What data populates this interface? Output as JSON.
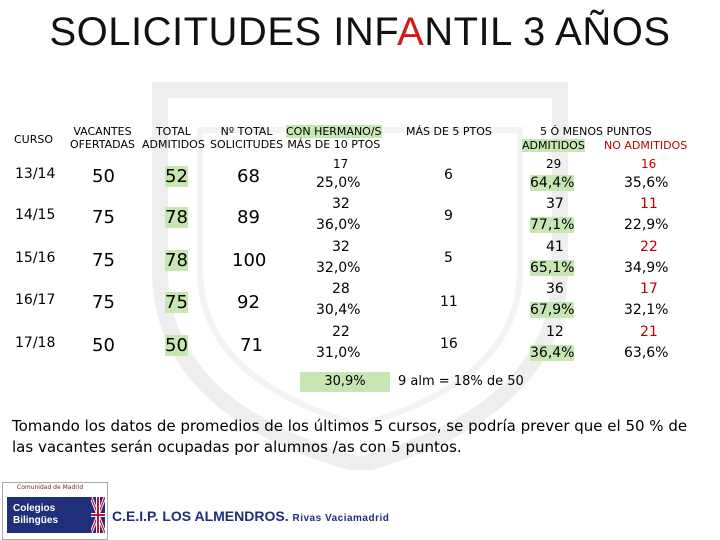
{
  "title": {
    "part1": "SOLICITUDES INF",
    "part_red": "A",
    "part2": "NTIL 3 AÑOS"
  },
  "headers": {
    "curso": "CURSO",
    "vacantes": [
      "VACANTES",
      "OFERTADAS"
    ],
    "admitidos": [
      "TOTAL",
      "ADMITIDOS"
    ],
    "solicitudes": [
      "Nº TOTAL",
      "SOLICITUDES"
    ],
    "hermano": [
      "CON HERMANO/S",
      "MÁS DE 10 PTOS"
    ],
    "mas5": "MÁS DE 5 PTOS",
    "menos5": "5 Ó MENOS PUNTOS",
    "admitidos2": "ADMITIDOS",
    "no_admitidos": "NO ADMITIDOS"
  },
  "rows": [
    {
      "curso": "13/14",
      "vacantes": "50",
      "admitidos": "52",
      "solicitudes": "68",
      "hermano_n": "17",
      "hermano_pct": "25,0%",
      "mas5": "6",
      "adm_n": "29",
      "adm_pct": "64,4%",
      "noadm_n": "16",
      "noadm_pct": "35,6%"
    },
    {
      "curso": "14/15",
      "vacantes": "75",
      "admitidos": "78",
      "solicitudes": "89",
      "hermano_n": "32",
      "hermano_pct": "36,0%",
      "mas5": "9",
      "adm_n": "37",
      "adm_pct": "77,1%",
      "noadm_n": "11",
      "noadm_pct": "22,9%"
    },
    {
      "curso": "15/16",
      "vacantes": "75",
      "admitidos": "78",
      "solicitudes": "100",
      "hermano_n": "32",
      "hermano_pct": "32,0%",
      "mas5": "5",
      "adm_n": "41",
      "adm_pct": "65,1%",
      "noadm_n": "22",
      "noadm_pct": "34,9%"
    },
    {
      "curso": "16/17",
      "vacantes": "75",
      "admitidos": "75",
      "solicitudes": "92",
      "hermano_n": "28",
      "hermano_pct": "30,4%",
      "mas5": "11",
      "adm_n": "36",
      "adm_pct": "67,9%",
      "noadm_n": "17",
      "noadm_pct": "32,1%"
    },
    {
      "curso": "17/18",
      "vacantes": "50",
      "admitidos": "50",
      "solicitudes": "71",
      "hermano_n": "22",
      "hermano_pct": "31,0%",
      "mas5": "16",
      "adm_n": "12",
      "adm_pct": "36,4%",
      "noadm_n": "21",
      "noadm_pct": "63,6%"
    }
  ],
  "summary": {
    "avg_hermano": "30,9%",
    "mas5_note": "9 alm = 18% de 50"
  },
  "note": "Tomando los datos de promedios de los últimos 5 cursos, se podría prever que el 50 % de las vacantes serán ocupadas por alumnos /as con 5 puntos.",
  "footer": {
    "logo_top": "Comunidad de Madrid",
    "logo_line1": "Colegios",
    "logo_line2": "Bilingües",
    "school": "C.E.I.P. LOS ALMENDROS.",
    "town": "Rivas Vaciamadrid"
  },
  "colors": {
    "highlight": "#c6e7b4",
    "red": "#c00000",
    "title_red": "#d21b1b",
    "brand_blue": "#1f2f7a"
  }
}
